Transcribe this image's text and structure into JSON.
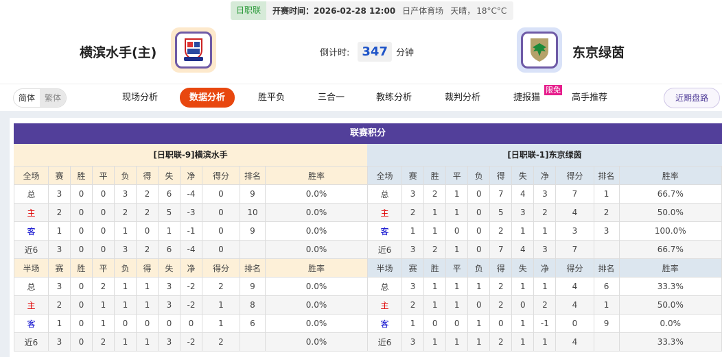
{
  "match": {
    "league": "日职联",
    "time_label": "开赛时间：",
    "time": "2026-02-28 12:00",
    "venue": "日产体育场",
    "weather": "天晴，",
    "temp": "18°C°C"
  },
  "home": {
    "name": "横滨水手(主)",
    "logo": "yokohama-marinos-crest"
  },
  "away": {
    "name": "东京绿茵",
    "logo": "tokyo-verdy-crest"
  },
  "countdown": {
    "label": "倒计时:",
    "value": "347",
    "unit": "分钟"
  },
  "lang": {
    "simplified": "简体",
    "traditional": "繁体"
  },
  "nav": [
    {
      "label": "现场分析"
    },
    {
      "label": "数据分析",
      "active": true
    },
    {
      "label": "胜平负"
    },
    {
      "label": "三合一"
    },
    {
      "label": "教练分析"
    },
    {
      "label": "裁判分析"
    },
    {
      "label": "捷报猫"
    },
    {
      "label": "高手推荐"
    }
  ],
  "badge": "限免",
  "recent_button": "近期盘路",
  "colors": {
    "accent": "#523f9a",
    "active_tab": "#e8470f",
    "home_row": "#e00000",
    "away_row": "#0000cc",
    "home_header": "#fdf0d8",
    "away_header": "#dce6ef"
  },
  "standings": {
    "title": "联赛积分",
    "columns": [
      "赛",
      "胜",
      "平",
      "负",
      "得",
      "失",
      "净",
      "得分",
      "排名",
      "胜率"
    ],
    "home": {
      "header": "[日职联-9]横滨水手",
      "full": {
        "label": "全场",
        "rows": [
          [
            "总",
            "3",
            "0",
            "0",
            "3",
            "2",
            "6",
            "-4",
            "0",
            "9",
            "0.0%"
          ],
          [
            "主",
            "2",
            "0",
            "0",
            "2",
            "2",
            "5",
            "-3",
            "0",
            "10",
            "0.0%"
          ],
          [
            "客",
            "1",
            "0",
            "0",
            "1",
            "0",
            "1",
            "-1",
            "0",
            "9",
            "0.0%"
          ],
          [
            "近6",
            "3",
            "0",
            "0",
            "3",
            "2",
            "6",
            "-4",
            "0",
            "",
            "0.0%"
          ]
        ]
      },
      "half": {
        "label": "半场",
        "rows": [
          [
            "总",
            "3",
            "0",
            "2",
            "1",
            "1",
            "3",
            "-2",
            "2",
            "9",
            "0.0%"
          ],
          [
            "主",
            "2",
            "0",
            "1",
            "1",
            "1",
            "3",
            "-2",
            "1",
            "8",
            "0.0%"
          ],
          [
            "客",
            "1",
            "0",
            "1",
            "0",
            "0",
            "0",
            "0",
            "1",
            "6",
            "0.0%"
          ],
          [
            "近6",
            "3",
            "0",
            "2",
            "1",
            "1",
            "3",
            "-2",
            "2",
            "",
            "0.0%"
          ]
        ]
      }
    },
    "away": {
      "header": "[日职联-1]东京绿茵",
      "full": {
        "label": "全场",
        "rows": [
          [
            "总",
            "3",
            "2",
            "1",
            "0",
            "7",
            "4",
            "3",
            "7",
            "1",
            "66.7%"
          ],
          [
            "主",
            "2",
            "1",
            "1",
            "0",
            "5",
            "3",
            "2",
            "4",
            "2",
            "50.0%"
          ],
          [
            "客",
            "1",
            "1",
            "0",
            "0",
            "2",
            "1",
            "1",
            "3",
            "3",
            "100.0%"
          ],
          [
            "近6",
            "3",
            "2",
            "1",
            "0",
            "7",
            "4",
            "3",
            "7",
            "",
            "66.7%"
          ]
        ]
      },
      "half": {
        "label": "半场",
        "rows": [
          [
            "总",
            "3",
            "1",
            "1",
            "1",
            "2",
            "1",
            "1",
            "4",
            "6",
            "33.3%"
          ],
          [
            "主",
            "2",
            "1",
            "1",
            "0",
            "2",
            "0",
            "2",
            "4",
            "1",
            "50.0%"
          ],
          [
            "客",
            "1",
            "0",
            "0",
            "1",
            "0",
            "1",
            "-1",
            "0",
            "9",
            "0.0%"
          ],
          [
            "近6",
            "3",
            "1",
            "1",
            "1",
            "2",
            "1",
            "1",
            "4",
            "",
            "33.3%"
          ]
        ]
      }
    }
  }
}
